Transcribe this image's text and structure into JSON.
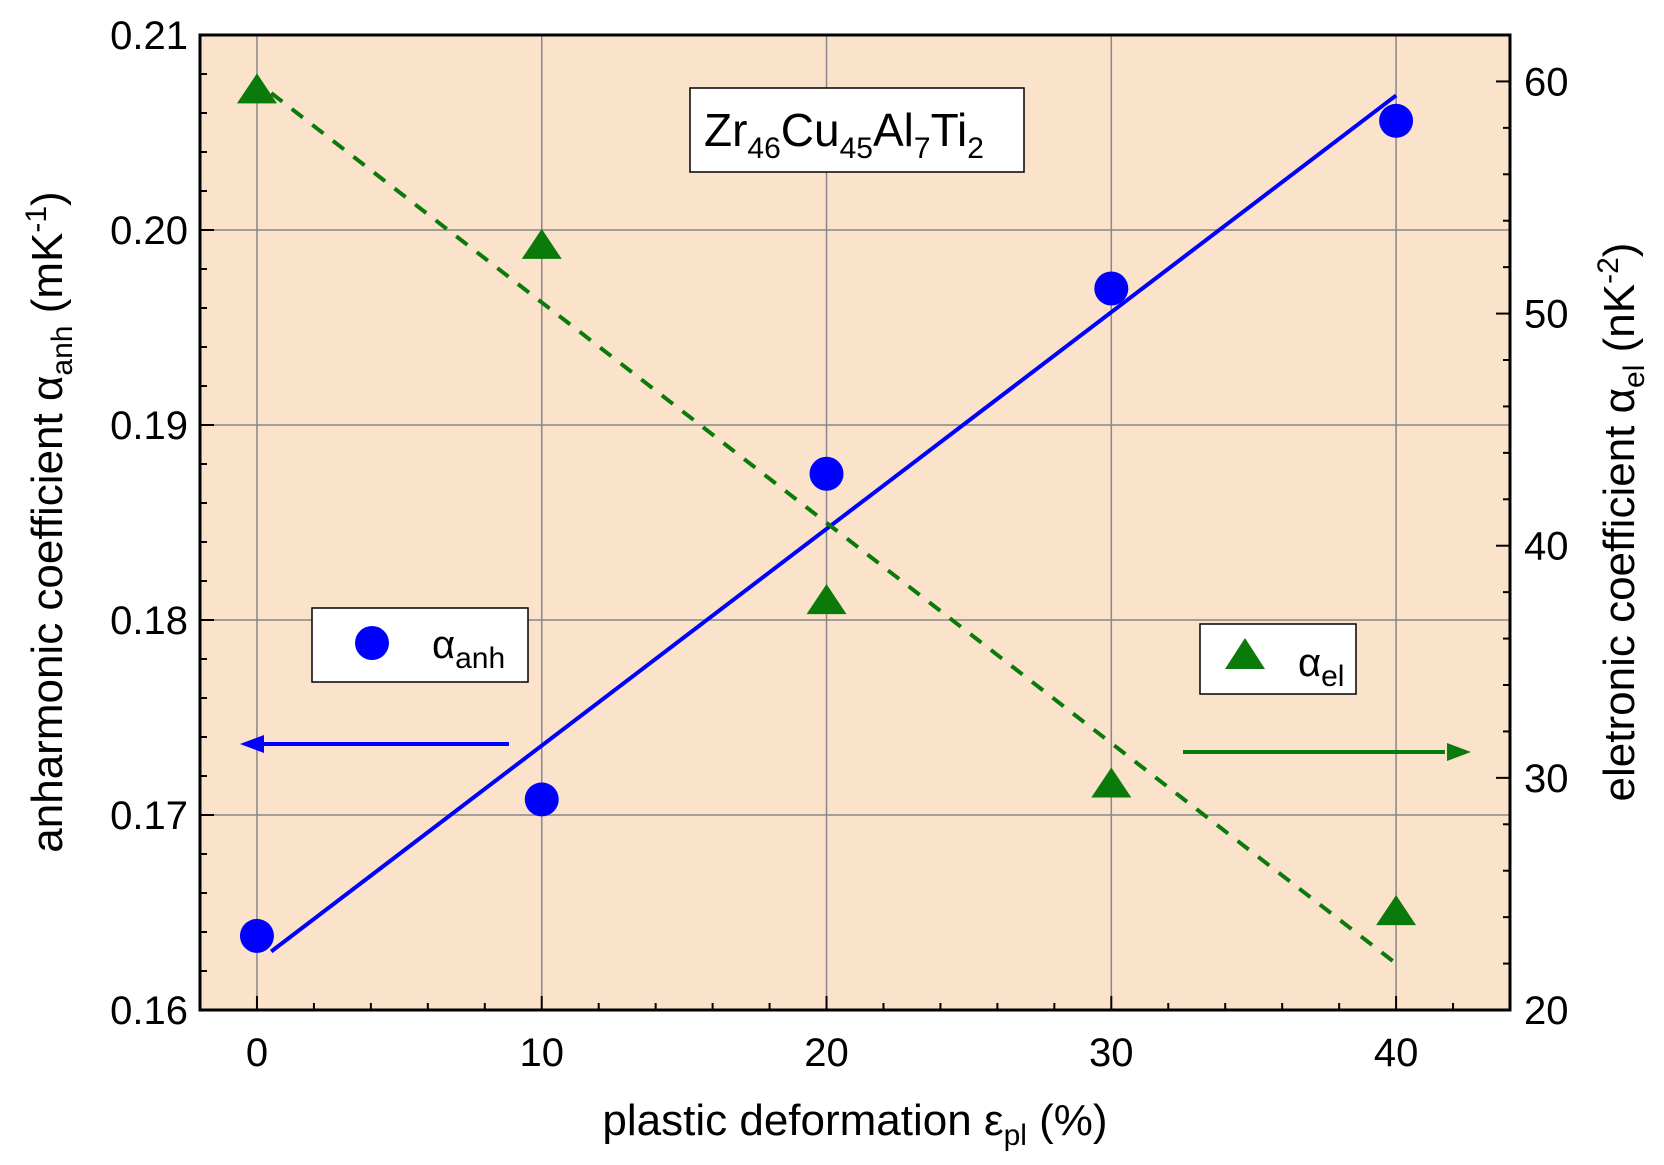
{
  "colors": {
    "plot_bg": "#FBE2CB",
    "series_anh": "#0000FF",
    "series_el": "#0A7A0A",
    "grid": "#888888"
  },
  "chart_data": {
    "type": "scatter",
    "annotation": {
      "base": [
        "Zr",
        "Cu",
        "Al",
        "Ti"
      ],
      "subs": [
        "46",
        "45",
        "7",
        "2"
      ]
    },
    "xlabel": {
      "main": "plastic deformation  ε",
      "sub": "pl",
      "tail": " (%)"
    },
    "ylabel_left": {
      "main": "anharmonic coefficient  α",
      "sub": "anh",
      "unit_pre": " (mK",
      "unit_sup": "-1",
      "unit_post": ")"
    },
    "ylabel_right": {
      "main": "eletronic coefficient  α",
      "sub": "el",
      "unit_pre": " (nK",
      "unit_sup": "-2",
      "unit_post": ")"
    },
    "xlim": [
      -2,
      44
    ],
    "ylim_left": [
      0.16,
      0.21
    ],
    "ylim_right": [
      20,
      62
    ],
    "x_ticks": [
      "0",
      "10",
      "20",
      "30",
      "40"
    ],
    "y_left_ticks": [
      "0.16",
      "0.17",
      "0.18",
      "0.19",
      "0.20",
      "0.21"
    ],
    "y_right_ticks": [
      "20",
      "30",
      "40",
      "50",
      "60"
    ],
    "grid": true,
    "series": [
      {
        "name": "α",
        "name_sub": "anh",
        "axis": "left",
        "marker": "circle",
        "line_style": "solid",
        "x": [
          0,
          10,
          20,
          30,
          40
        ],
        "y": [
          0.1638,
          0.1708,
          0.1875,
          0.197,
          0.2056
        ],
        "fit": {
          "x": [
            0.5,
            40
          ],
          "y": [
            0.163,
            0.2069
          ]
        }
      },
      {
        "name": "α",
        "name_sub": "el",
        "axis": "right",
        "marker": "triangle",
        "line_style": "dashed",
        "x": [
          0,
          10,
          20,
          30,
          40
        ],
        "y": [
          59.7,
          53.0,
          37.7,
          29.8,
          24.3
        ],
        "fit": {
          "x": [
            0.5,
            40
          ],
          "y": [
            59.5,
            22.0
          ]
        }
      }
    ]
  }
}
